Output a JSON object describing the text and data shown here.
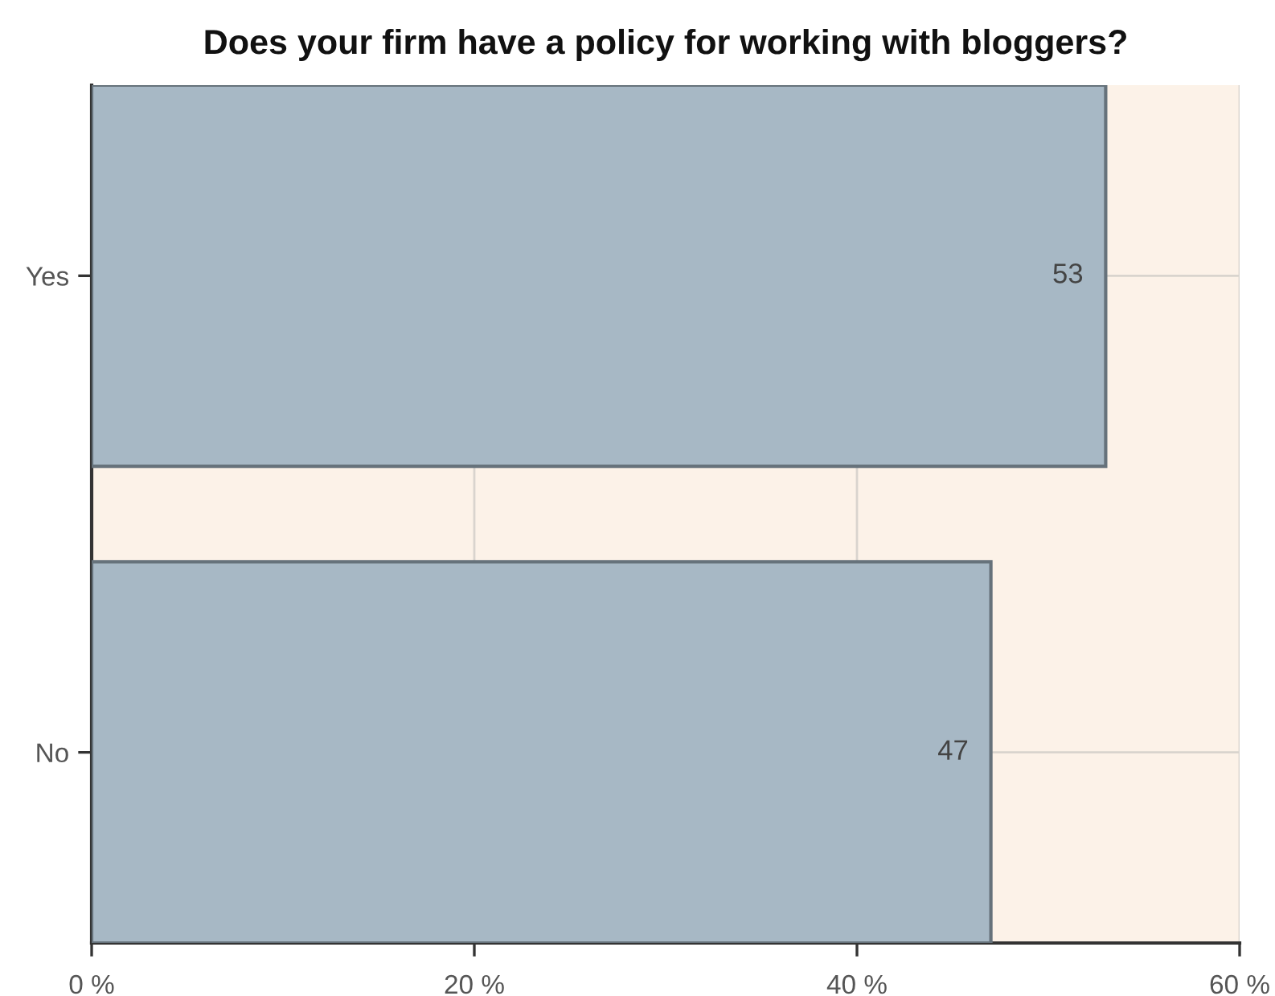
{
  "chart_data": {
    "type": "bar",
    "orientation": "horizontal",
    "title": "Does your firm have a policy for working with bloggers?",
    "categories": [
      "Yes",
      "No"
    ],
    "values": [
      53,
      47
    ],
    "color": "#a7b8c5",
    "xlim": [
      0,
      60
    ],
    "xticks": [
      {
        "value": 0,
        "label": "0 %"
      },
      {
        "value": 20,
        "label": "20 %"
      },
      {
        "value": 40,
        "label": "40 %"
      },
      {
        "value": 60,
        "label": "60 %"
      }
    ],
    "grid": true,
    "data_labels": true
  }
}
